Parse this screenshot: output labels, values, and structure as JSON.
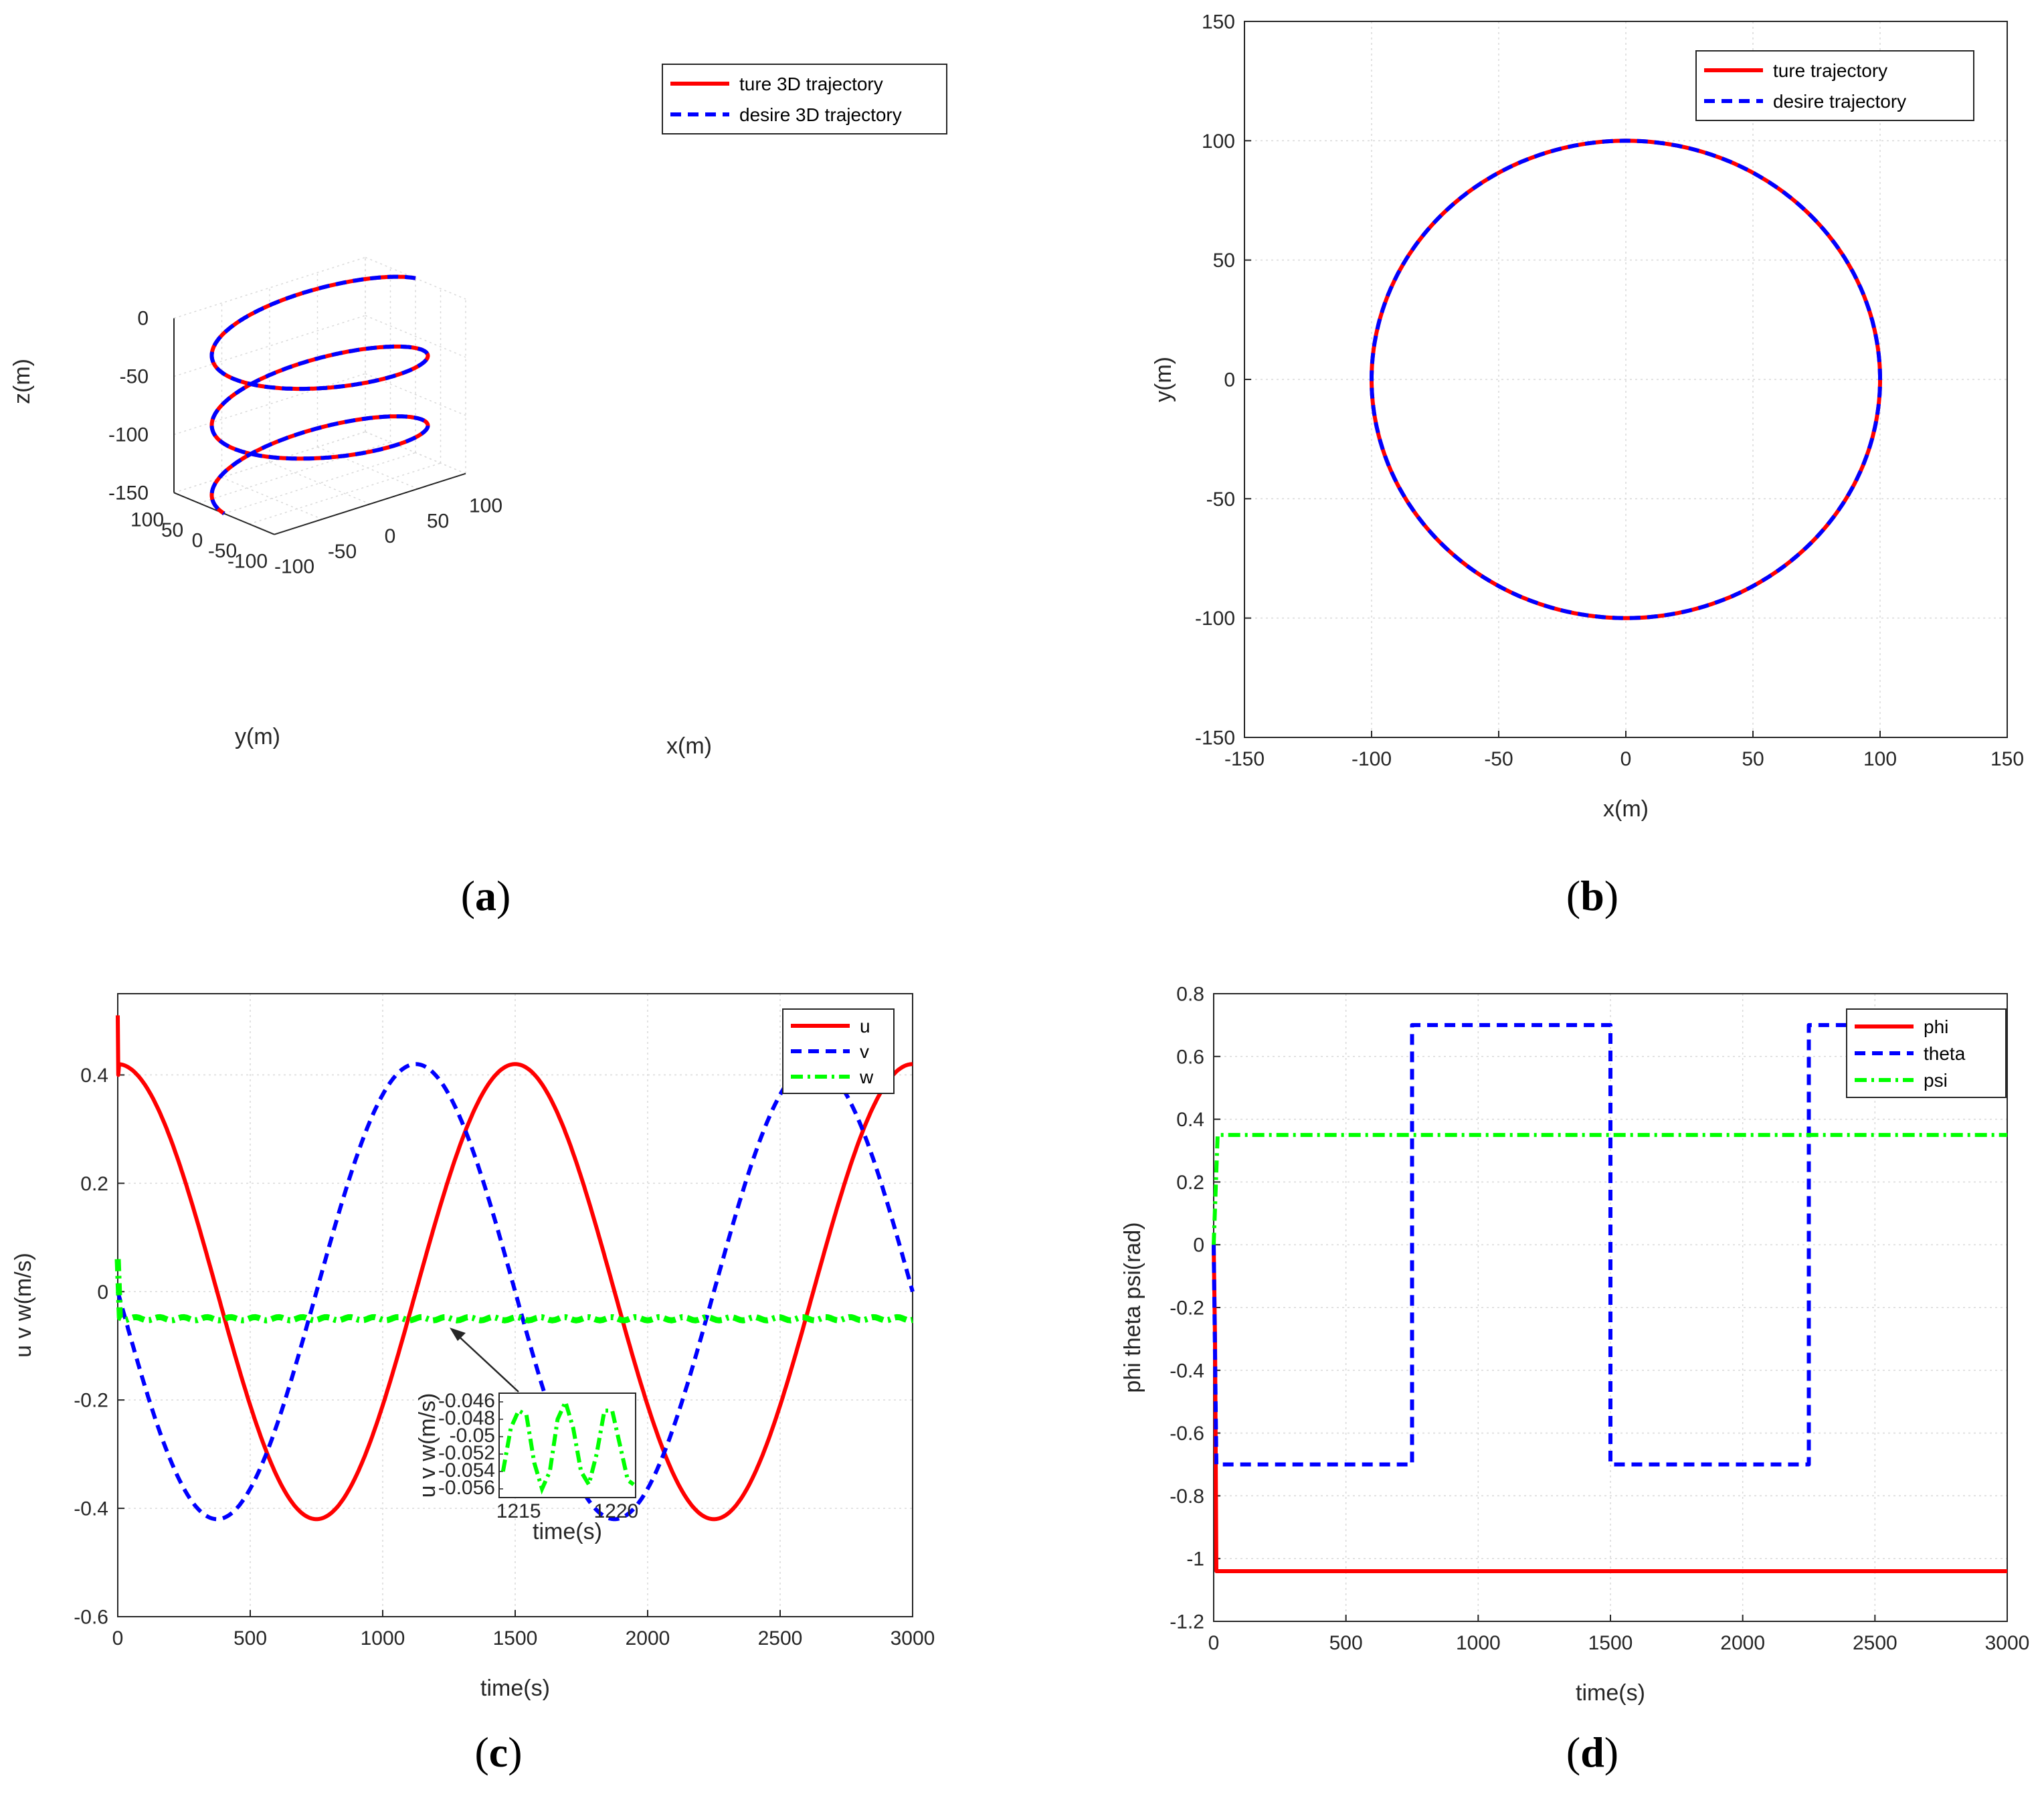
{
  "captions": {
    "a": "a",
    "b": "b",
    "c": "c",
    "d": "d"
  },
  "colors": {
    "red": "#ff0000",
    "blue": "#0000ff",
    "green": "#00ff00",
    "axis": "#262626",
    "grid": "#d9d9d9"
  },
  "chart_data": [
    {
      "id": "a",
      "type": "line",
      "projection": "3d",
      "xlabel": "x(m)",
      "ylabel": "y(m)",
      "zlabel": "z(m)",
      "xlim": [
        -100,
        100
      ],
      "ylim": [
        -100,
        100
      ],
      "zlim": [
        -150,
        0
      ],
      "xticks": [
        -100,
        -50,
        0,
        50,
        100
      ],
      "yticks": [
        -100,
        -50,
        0,
        50,
        100
      ],
      "zticks": [
        -150,
        -100,
        -50,
        0
      ],
      "grid": true,
      "legend_position": "top-right",
      "series": [
        {
          "name": "ture 3D trajectory",
          "style": "solid",
          "color": "#ff0000"
        },
        {
          "name": "desire 3D trajectory",
          "style": "dashed",
          "color": "#0000ff"
        }
      ],
      "path": {
        "shape": "helix",
        "radius": 100,
        "turns": 2.5,
        "z_start": 0,
        "z_end": -150
      }
    },
    {
      "id": "b",
      "type": "line",
      "xlabel": "x(m)",
      "ylabel": "y(m)",
      "xlim": [
        -150,
        150
      ],
      "ylim": [
        -150,
        150
      ],
      "xticks": [
        -150,
        -100,
        -50,
        0,
        50,
        100,
        150
      ],
      "yticks": [
        -150,
        -100,
        -50,
        0,
        50,
        100,
        150
      ],
      "grid": true,
      "legend_position": "top-right",
      "series": [
        {
          "name": "ture trajectory",
          "style": "solid",
          "color": "#ff0000"
        },
        {
          "name": "desire trajectory",
          "style": "dashed",
          "color": "#0000ff"
        }
      ],
      "path": {
        "shape": "circle",
        "center": [
          0,
          0
        ],
        "radius": 100
      }
    },
    {
      "id": "c",
      "type": "line",
      "xlabel": "time(s)",
      "ylabel": "u v w(m/s)",
      "xlim": [
        0,
        3000
      ],
      "ylim": [
        -0.6,
        0.55
      ],
      "xticks": [
        0,
        500,
        1000,
        1500,
        2000,
        2500,
        3000
      ],
      "yticks": [
        -0.6,
        -0.4,
        -0.2,
        0,
        0.2,
        0.4
      ],
      "grid": true,
      "legend_position": "top-right",
      "series": [
        {
          "name": "u",
          "style": "solid",
          "color": "#ff0000",
          "model": "0.42*cos(2*pi*t/1500)",
          "initial_spike": 0.51
        },
        {
          "name": "v",
          "style": "dashed",
          "color": "#0000ff",
          "model": "-0.42*sin(2*pi*t/1500)"
        },
        {
          "name": "w",
          "style": "dashdot",
          "color": "#00ff00",
          "model": "-0.05 + 0.005*sin(oscillation)",
          "initial_spike": 0.06
        }
      ],
      "inset": {
        "xlabel": "time(s)",
        "ylabel": "u v w(m/s)",
        "xlim": [
          1214,
          1221
        ],
        "ylim": [
          -0.057,
          -0.045
        ],
        "xticks": [
          1215,
          1220
        ],
        "yticks": [
          -0.046,
          -0.048,
          -0.05,
          -0.052,
          -0.054,
          -0.056
        ],
        "series": "w",
        "points": [
          [
            1214.2,
            -0.054
          ],
          [
            1214.6,
            -0.049
          ],
          [
            1215.0,
            -0.047
          ],
          [
            1215.4,
            -0.0475
          ],
          [
            1215.8,
            -0.053
          ],
          [
            1216.2,
            -0.056
          ],
          [
            1216.6,
            -0.054
          ],
          [
            1217.0,
            -0.048
          ],
          [
            1217.4,
            -0.046
          ],
          [
            1217.8,
            -0.049
          ],
          [
            1218.2,
            -0.054
          ],
          [
            1218.6,
            -0.0555
          ],
          [
            1219.0,
            -0.052
          ],
          [
            1219.4,
            -0.047
          ],
          [
            1219.8,
            -0.047
          ],
          [
            1220.2,
            -0.051
          ],
          [
            1220.6,
            -0.055
          ],
          [
            1220.9,
            -0.0555
          ]
        ]
      }
    },
    {
      "id": "d",
      "type": "line",
      "xlabel": "time(s)",
      "ylabel": "phi theta psi(rad)",
      "xlim": [
        0,
        3000
      ],
      "ylim": [
        -1.2,
        0.8
      ],
      "xticks": [
        0,
        500,
        1000,
        1500,
        2000,
        2500,
        3000
      ],
      "yticks": [
        -1.2,
        -1,
        -0.8,
        -0.6,
        -0.4,
        -0.2,
        0,
        0.2,
        0.4,
        0.6,
        0.8
      ],
      "grid": true,
      "legend_position": "top-right",
      "series": [
        {
          "name": "phi",
          "style": "solid",
          "color": "#ff0000",
          "points": [
            [
              0,
              0.0
            ],
            [
              5,
              -0.3
            ],
            [
              10,
              -1.04
            ],
            [
              3000,
              -1.04
            ]
          ]
        },
        {
          "name": "theta",
          "style": "dashed",
          "color": "#0000ff",
          "points": [
            [
              0,
              0.0
            ],
            [
              10,
              -0.7
            ],
            [
              750,
              -0.7
            ],
            [
              750,
              0.7
            ],
            [
              1500,
              0.7
            ],
            [
              1500,
              -0.7
            ],
            [
              2250,
              -0.7
            ],
            [
              2250,
              0.7
            ],
            [
              3000,
              0.7
            ]
          ]
        },
        {
          "name": "psi",
          "style": "dashdot",
          "color": "#00ff00",
          "points": [
            [
              0,
              0.0
            ],
            [
              15,
              0.35
            ],
            [
              3000,
              0.35
            ]
          ]
        }
      ]
    }
  ]
}
